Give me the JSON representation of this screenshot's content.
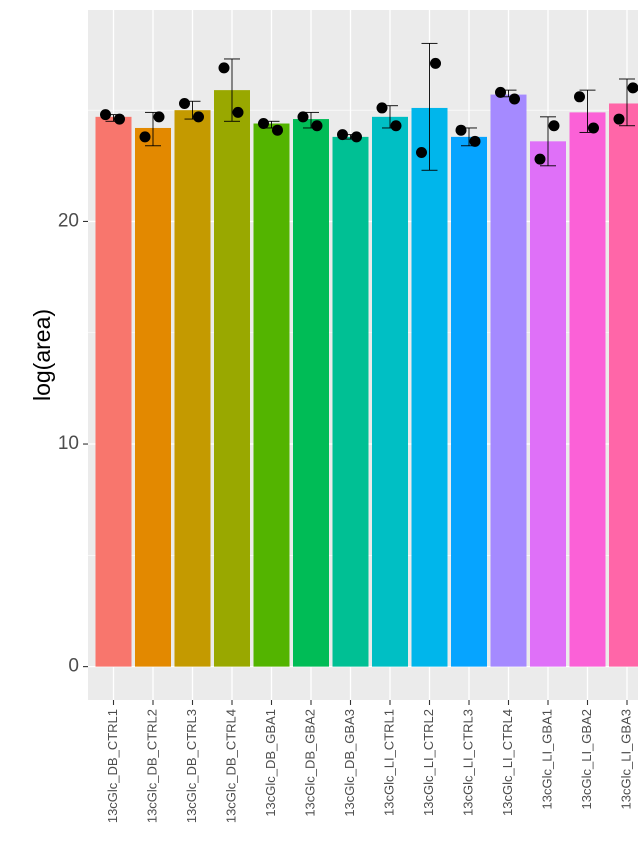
{
  "chart_data": {
    "type": "bar",
    "title": "",
    "xlabel": "",
    "ylabel": "log(area)",
    "ylim": [
      -1.5,
      29.5
    ],
    "yticks": [
      0,
      10,
      20
    ],
    "ytick_labels": [
      "0",
      "10",
      "20"
    ],
    "grid": true,
    "legend": "none",
    "categories": [
      "13cGlc_DB_CTRL1",
      "13cGlc_DB_CTRL2",
      "13cGlc_DB_CTRL3",
      "13cGlc_DB_CTRL4",
      "13cGlc_DB_GBA1",
      "13cGlc_DB_GBA2",
      "13cGlc_DB_GBA3",
      "13cGlc_LI_CTRL1",
      "13cGlc_LI_CTRL2",
      "13cGlc_LI_CTRL3",
      "13cGlc_LI_CTRL4",
      "13cGlc_LI_GBA1",
      "13cGlc_LI_GBA2",
      "13cGlc_LI_GBA3"
    ],
    "values": [
      24.7,
      24.2,
      25.0,
      25.9,
      24.4,
      24.6,
      23.8,
      24.7,
      25.1,
      23.8,
      25.7,
      23.6,
      24.9,
      25.3
    ],
    "error_low": [
      24.5,
      23.4,
      24.6,
      24.5,
      24.2,
      24.2,
      23.7,
      24.2,
      22.3,
      23.4,
      25.6,
      22.5,
      24.0,
      24.3
    ],
    "error_high": [
      24.8,
      24.9,
      25.4,
      27.3,
      24.5,
      24.9,
      23.9,
      25.2,
      28.0,
      24.2,
      25.9,
      24.7,
      25.9,
      26.4
    ],
    "points": [
      [
        24.8,
        24.6
      ],
      [
        23.8,
        24.7
      ],
      [
        25.3,
        24.7
      ],
      [
        26.9,
        24.9
      ],
      [
        24.4,
        24.1
      ],
      [
        24.7,
        24.3
      ],
      [
        23.9,
        23.8
      ],
      [
        25.1,
        24.3
      ],
      [
        23.1,
        27.1
      ],
      [
        24.1,
        23.6
      ],
      [
        25.8,
        25.5
      ],
      [
        22.8,
        24.3
      ],
      [
        25.6,
        24.2
      ],
      [
        24.6,
        26.0
      ]
    ],
    "colors": [
      "#F8766D",
      "#E38900",
      "#C49A00",
      "#99A800",
      "#53B400",
      "#00BC56",
      "#00C094",
      "#00BFC4",
      "#00B6EB",
      "#06A4FF",
      "#A58AFF",
      "#DF70F8",
      "#FB61D7",
      "#FF66A8"
    ],
    "panel_background": "#EBEBEB",
    "grid_color": "#FFFFFF"
  }
}
